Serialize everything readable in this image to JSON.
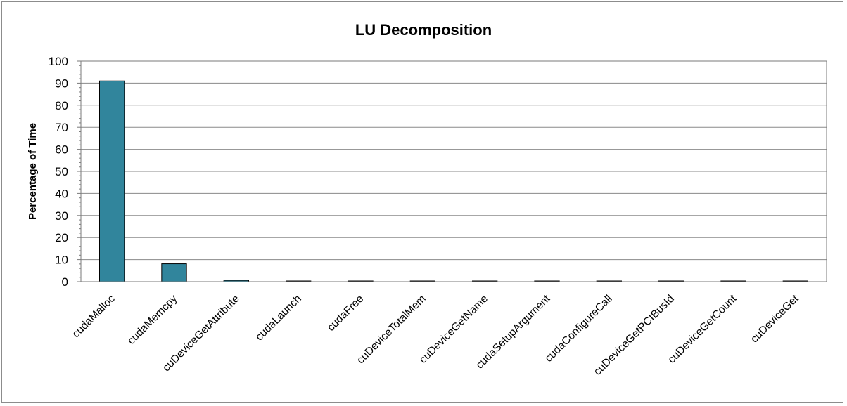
{
  "chart_data": {
    "type": "bar",
    "title": "LU Decomposition",
    "xlabel": "",
    "ylabel": "Percentage of Time",
    "ylim": [
      0,
      100
    ],
    "yticks": [
      "0",
      "10",
      "20",
      "30",
      "40",
      "50",
      "60",
      "70",
      "80",
      "90",
      "100"
    ],
    "grid": true,
    "legend": "none",
    "bar_color": "#31859c",
    "categories": [
      "cudaMalloc",
      "cudaMemcpy",
      "cuDeviceGetAttribute",
      "cudaLaunch",
      "cudaFree",
      "cuDeviceTotalMem",
      "cuDeviceGetName",
      "cudaSetupArgument",
      "cudaConfigureCall",
      "cuDeviceGetPCIBusId",
      "cuDeviceGetCount",
      "cuDeviceGet"
    ],
    "values": [
      91,
      8.1,
      0.6,
      0.2,
      0.15,
      0.1,
      0.1,
      0.1,
      0.1,
      0.1,
      0.05,
      0.05
    ]
  }
}
